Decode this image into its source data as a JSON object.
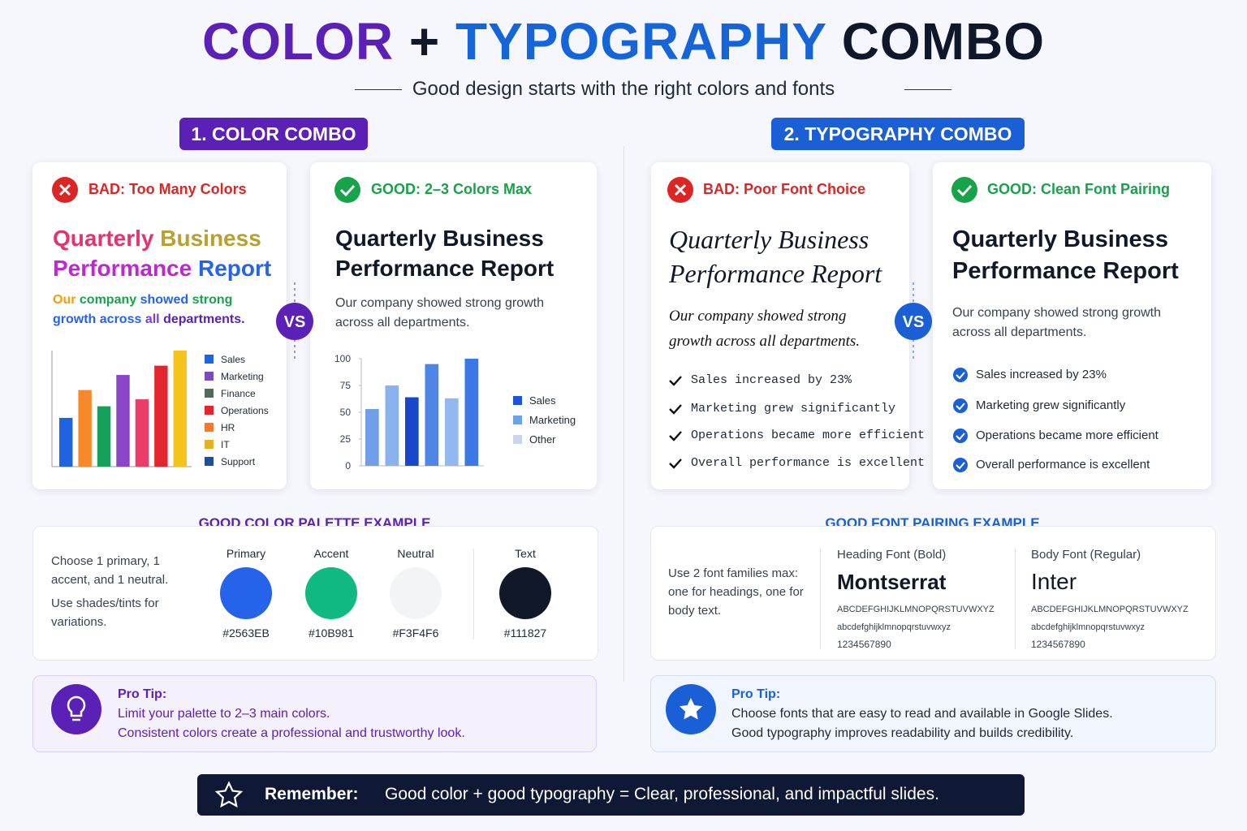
{
  "title_parts": [
    {
      "text": "COLOR",
      "color": "#5b21b6"
    },
    {
      "text": "+",
      "color": "#111827"
    },
    {
      "text": "TYPOGRAPHY",
      "color": "#1565d8"
    },
    {
      "text": "COMBO",
      "color": "#0f172a"
    }
  ],
  "subtitle": "Good design starts with the right colors and fonts",
  "color_section": {
    "label": "1. COLOR COMBO",
    "bad": {
      "verdict": "BAD: Too Many Colors",
      "title_words": [
        "Quarterly",
        "Business",
        "Performance",
        "Report"
      ],
      "title_colors": [
        "#e6326e",
        "#b8a032",
        "#c026d3",
        "#2563eb"
      ],
      "body_words": [
        "Our",
        "company",
        "showed",
        "strong",
        "growth",
        "across",
        "all",
        "departments."
      ],
      "body_colors": [
        "#f59e0b",
        "#16a34a",
        "#2563eb",
        "#16a34a",
        "#2563eb",
        "#2563eb",
        "#7c3aed",
        "#5b21b6"
      ],
      "chart": {
        "type": "bar",
        "ylim": [
          0,
          100
        ],
        "values": [
          42,
          66,
          52,
          79,
          58,
          87,
          100
        ],
        "colors": [
          "#1e63e0",
          "#f7892a",
          "#16a05a",
          "#8b45c8",
          "#ec3c6c",
          "#e3262e",
          "#f6c21c"
        ],
        "legend": [
          {
            "name": "Sales",
            "color": "#1e63e0"
          },
          {
            "name": "Marketing",
            "color": "#7b4cb8"
          },
          {
            "name": "Finance",
            "color": "#4f6b5a"
          },
          {
            "name": "Operations",
            "color": "#e3262e"
          },
          {
            "name": "HR",
            "color": "#f7792a"
          },
          {
            "name": "IT",
            "color": "#e0b224"
          },
          {
            "name": "Support",
            "color": "#1e4f9a"
          }
        ]
      }
    },
    "good": {
      "verdict": "GOOD: 2–3 Colors Max",
      "title": "Quarterly Business Performance Report",
      "body": "Our company showed strong growth across all departments.",
      "chart": {
        "type": "bar",
        "ylim": [
          0,
          100
        ],
        "yticks": [
          0,
          25,
          50,
          75,
          100
        ],
        "values": [
          53,
          75,
          64,
          95,
          63,
          100
        ],
        "colors": [
          "#6f9fe8",
          "#8ab3ee",
          "#1947c9",
          "#4f86e6",
          "#93b8ef",
          "#3b78e6"
        ],
        "legend": [
          {
            "name": "Sales",
            "color": "#1d55d8"
          },
          {
            "name": "Marketing",
            "color": "#6fa0ea"
          },
          {
            "name": "Other",
            "color": "#c9d6ee"
          }
        ]
      }
    },
    "palette": {
      "title": "GOOD COLOR PALETTE EXAMPLE",
      "note1": "Choose 1 primary, 1 accent, and 1 neutral.",
      "note2": "Use shades/tints for variations.",
      "swatches": [
        {
          "name": "Primary",
          "hex": "#2563EB"
        },
        {
          "name": "Accent",
          "hex": "#10B981"
        },
        {
          "name": "Neutral",
          "hex": "#F3F4F6"
        },
        {
          "name": "Text",
          "hex": "#111827"
        }
      ]
    },
    "tip": {
      "label": "Pro Tip:",
      "lines": [
        "Limit your palette to 2–3 main colors.",
        "Consistent colors create a professional and trustworthy look."
      ]
    }
  },
  "typography_section": {
    "label": "2. TYPOGRAPHY COMBO",
    "bad": {
      "verdict": "BAD: Poor Font Choice",
      "title": "Quarterly Business Performance Report",
      "body": "Our company showed strong growth across all departments.",
      "items": [
        "Sales increased by 23%",
        "Marketing grew significantly",
        "Operations became more efficient",
        "Overall performance is excellent"
      ]
    },
    "good": {
      "verdict": "GOOD: Clean Font Pairing",
      "title": "Quarterly Business Performance Report",
      "body": "Our company showed strong growth across all departments.",
      "items": [
        "Sales increased by 23%",
        "Marketing grew significantly",
        "Operations became more efficient",
        "Overall performance is excellent"
      ]
    },
    "pairing": {
      "title": "GOOD FONT PAIRING EXAMPLE",
      "note": "Use 2 font families max: one for headings, one for body text.",
      "fonts": [
        {
          "role": "Heading Font (Bold)",
          "name": "Montserrat",
          "upper": "ABCDEFGHIJKLMNOPQRSTUVWXYZ",
          "lower": "abcdefghijklmnopqrstuvwxyz",
          "digits": "1234567890"
        },
        {
          "role": "Body Font (Regular)",
          "name": "Inter",
          "upper": "ABCDEFGHIJKLMNOPQRSTUVWXYZ",
          "lower": "abcdefghijklmnopqrstuvwxyz",
          "digits": "1234567890"
        }
      ]
    },
    "tip": {
      "label": "Pro Tip:",
      "lines": [
        "Choose fonts that are easy to read and available in Google Slides.",
        "Good typography improves readability and builds credibility."
      ]
    }
  },
  "vs": "VS",
  "remember": {
    "label": "Remember:",
    "text": "Good color + good typography = Clear, professional, and impactful slides."
  }
}
